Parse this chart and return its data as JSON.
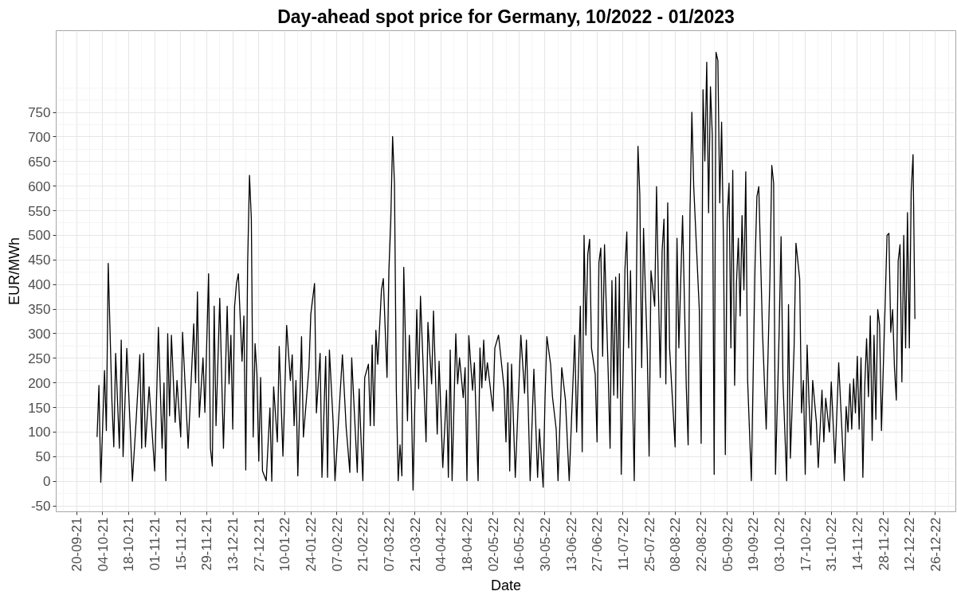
{
  "chart_data": {
    "type": "line",
    "title": "Day-ahead spot price for Germany, 10/2022 - 01/2023",
    "xlabel": "Date",
    "ylabel": "EUR/MWh",
    "x": [
      "2021-10-01",
      "2021-10-02",
      "2021-10-03",
      "2021-10-05",
      "2021-10-06",
      "2021-10-07",
      "2021-10-09",
      "2021-10-10",
      "2021-10-11",
      "2021-10-13",
      "2021-10-14",
      "2021-10-15",
      "2021-10-17",
      "2021-10-19",
      "2021-10-20",
      "2021-10-22",
      "2021-10-24",
      "2021-10-25",
      "2021-10-26",
      "2021-10-27",
      "2021-10-29",
      "2021-11-01",
      "2021-11-03",
      "2021-11-05",
      "2021-11-06",
      "2021-11-07",
      "2021-11-08",
      "2021-11-09",
      "2021-11-10",
      "2021-11-12",
      "2021-11-13",
      "2021-11-15",
      "2021-11-16",
      "2021-11-19",
      "2021-11-22",
      "2021-11-23",
      "2021-11-24",
      "2021-11-25",
      "2021-11-27",
      "2021-11-28",
      "2021-11-30",
      "2021-12-01",
      "2021-12-02",
      "2021-12-03",
      "2021-12-04",
      "2021-12-06",
      "2021-12-08",
      "2021-12-10",
      "2021-12-11",
      "2021-12-12",
      "2021-12-13",
      "2021-12-14",
      "2021-12-15",
      "2021-12-16",
      "2021-12-18",
      "2021-12-19",
      "2021-12-20",
      "2021-12-21",
      "2021-12-22",
      "2021-12-23",
      "2021-12-24",
      "2021-12-25",
      "2021-12-26",
      "2021-12-27",
      "2021-12-28",
      "2021-12-29",
      "2021-12-31",
      "2022-01-02",
      "2022-01-03",
      "2022-01-04",
      "2022-01-06",
      "2022-01-07",
      "2022-01-09",
      "2022-01-11",
      "2022-01-13",
      "2022-01-14",
      "2022-01-15",
      "2022-01-16",
      "2022-01-17",
      "2022-01-19",
      "2022-01-20",
      "2022-01-23",
      "2022-01-24",
      "2022-01-26",
      "2022-01-27",
      "2022-01-29",
      "2022-01-30",
      "2022-02-01",
      "2022-02-02",
      "2022-02-03",
      "2022-02-05",
      "2022-02-06",
      "2022-02-10",
      "2022-02-12",
      "2022-02-14",
      "2022-02-15",
      "2022-02-18",
      "2022-02-19",
      "2022-02-20",
      "2022-02-21",
      "2022-02-22",
      "2022-02-24",
      "2022-02-25",
      "2022-02-26",
      "2022-02-27",
      "2022-02-28",
      "2022-03-01",
      "2022-03-03",
      "2022-03-04",
      "2022-03-06",
      "2022-03-07",
      "2022-03-08",
      "2022-03-09",
      "2022-03-10",
      "2022-03-11",
      "2022-03-12",
      "2022-03-13",
      "2022-03-14",
      "2022-03-15",
      "2022-03-16",
      "2022-03-17",
      "2022-03-18",
      "2022-03-19",
      "2022-03-20",
      "2022-03-22",
      "2022-03-23",
      "2022-03-24",
      "2022-03-26",
      "2022-03-27",
      "2022-03-28",
      "2022-03-30",
      "2022-03-31",
      "2022-04-02",
      "2022-04-03",
      "2022-04-05",
      "2022-04-07",
      "2022-04-08",
      "2022-04-09",
      "2022-04-10",
      "2022-04-12",
      "2022-04-13",
      "2022-04-14",
      "2022-04-16",
      "2022-04-17",
      "2022-04-18",
      "2022-04-19",
      "2022-04-21",
      "2022-04-22",
      "2022-04-24",
      "2022-04-25",
      "2022-04-26",
      "2022-04-27",
      "2022-04-28",
      "2022-04-29",
      "2022-05-02",
      "2022-05-03",
      "2022-05-05",
      "2022-05-08",
      "2022-05-09",
      "2022-05-10",
      "2022-05-11",
      "2022-05-12",
      "2022-05-14",
      "2022-05-17",
      "2022-05-19",
      "2022-05-20",
      "2022-05-22",
      "2022-05-24",
      "2022-05-26",
      "2022-05-27",
      "2022-05-29",
      "2022-05-30",
      "2022-05-31",
      "2022-06-02",
      "2022-06-03",
      "2022-06-05",
      "2022-06-06",
      "2022-06-08",
      "2022-06-10",
      "2022-06-12",
      "2022-06-15",
      "2022-06-16",
      "2022-06-18",
      "2022-06-19",
      "2022-06-20",
      "2022-06-21",
      "2022-06-22",
      "2022-06-23",
      "2022-06-24",
      "2022-06-26",
      "2022-06-27",
      "2022-06-28",
      "2022-06-29",
      "2022-06-30",
      "2022-07-01",
      "2022-07-03",
      "2022-07-04",
      "2022-07-05",
      "2022-07-06",
      "2022-07-07",
      "2022-07-08",
      "2022-07-09",
      "2022-07-10",
      "2022-07-12",
      "2022-07-13",
      "2022-07-14",
      "2022-07-15",
      "2022-07-16",
      "2022-07-17",
      "2022-07-19",
      "2022-07-20",
      "2022-07-21",
      "2022-07-22",
      "2022-07-24",
      "2022-07-25",
      "2022-07-26",
      "2022-07-28",
      "2022-07-29",
      "2022-07-30",
      "2022-07-31",
      "2022-08-01",
      "2022-08-02",
      "2022-08-03",
      "2022-08-04",
      "2022-08-05",
      "2022-08-08",
      "2022-08-09",
      "2022-08-10",
      "2022-08-12",
      "2022-08-14",
      "2022-08-15",
      "2022-08-16",
      "2022-08-17",
      "2022-08-18",
      "2022-08-21",
      "2022-08-22",
      "2022-08-23",
      "2022-08-24",
      "2022-08-25",
      "2022-08-26",
      "2022-08-27",
      "2022-08-28",
      "2022-08-29",
      "2022-08-30",
      "2022-08-31",
      "2022-09-01",
      "2022-09-02",
      "2022-09-03",
      "2022-09-04",
      "2022-09-05",
      "2022-09-06",
      "2022-09-07",
      "2022-09-08",
      "2022-09-09",
      "2022-09-10",
      "2022-09-11",
      "2022-09-12",
      "2022-09-13",
      "2022-09-14",
      "2022-09-15",
      "2022-09-16",
      "2022-09-18",
      "2022-09-20",
      "2022-09-21",
      "2022-09-22",
      "2022-09-24",
      "2022-09-26",
      "2022-09-28",
      "2022-09-29",
      "2022-09-30",
      "2022-10-01",
      "2022-10-03",
      "2022-10-04",
      "2022-10-05",
      "2022-10-07",
      "2022-10-08",
      "2022-10-09",
      "2022-10-11",
      "2022-10-12",
      "2022-10-14",
      "2022-10-15",
      "2022-10-16",
      "2022-10-17",
      "2022-10-18",
      "2022-10-19",
      "2022-10-20",
      "2022-10-21",
      "2022-10-23",
      "2022-10-24",
      "2022-10-26",
      "2022-10-27",
      "2022-10-28",
      "2022-10-30",
      "2022-10-31",
      "2022-11-02",
      "2022-11-04",
      "2022-11-07",
      "2022-11-08",
      "2022-11-09",
      "2022-11-10",
      "2022-11-11",
      "2022-11-12",
      "2022-11-13",
      "2022-11-14",
      "2022-11-15",
      "2022-11-16",
      "2022-11-17",
      "2022-11-18",
      "2022-11-19",
      "2022-11-20",
      "2022-11-21",
      "2022-11-22",
      "2022-11-23",
      "2022-11-24",
      "2022-11-25",
      "2022-11-26",
      "2022-11-27",
      "2022-11-29",
      "2022-11-30",
      "2022-12-01",
      "2022-12-02",
      "2022-12-03",
      "2022-12-04",
      "2022-12-05",
      "2022-12-06",
      "2022-12-07",
      "2022-12-08",
      "2022-12-09",
      "2022-12-10",
      "2022-12-11",
      "2022-12-12",
      "2022-12-13",
      "2022-12-14",
      "2022-12-15"
    ],
    "series": [
      {
        "color": "#000000",
        "values": [
          90,
          195,
          -2,
          225,
          103,
          443,
          162,
          70,
          260,
          67,
          287,
          50,
          270,
          93,
          0,
          123,
          257,
          67,
          260,
          70,
          192,
          21,
          313,
          67,
          200,
          1,
          300,
          133,
          297,
          120,
          205,
          90,
          303,
          67,
          320,
          200,
          385,
          130,
          251,
          140,
          422,
          67,
          31,
          356,
          113,
          372,
          67,
          356,
          198,
          297,
          106,
          356,
          402,
          422,
          244,
          336,
          23,
          441,
          622,
          533,
          90,
          280,
          218,
          41,
          211,
          21,
          1,
          149,
          0,
          192,
          80,
          274,
          51,
          317,
          205,
          257,
          113,
          205,
          11,
          294,
          90,
          231,
          340,
          402,
          139,
          260,
          8,
          254,
          8,
          267,
          120,
          1,
          257,
          110,
          18,
          251,
          18,
          188,
          87,
          1,
          211,
          238,
          113,
          277,
          113,
          307,
          238,
          389,
          412,
          211,
          428,
          527,
          701,
          606,
          185,
          1,
          74,
          11,
          435,
          271,
          123,
          297,
          185,
          -18,
          349,
          188,
          376,
          179,
          80,
          323,
          198,
          346,
          96,
          244,
          28,
          185,
          8,
          267,
          1,
          300,
          198,
          251,
          170,
          231,
          1,
          296,
          185,
          241,
          1,
          271,
          190,
          287,
          205,
          241,
          143,
          271,
          297,
          188,
          80,
          241,
          21,
          238,
          8,
          297,
          179,
          287,
          1,
          228,
          8,
          106,
          -12,
          169,
          294,
          238,
          172,
          106,
          1,
          231,
          165,
          1,
          297,
          100,
          356,
          60,
          500,
          297,
          461,
          492,
          271,
          218,
          80,
          445,
          474,
          254,
          481,
          218,
          67,
          408,
          175,
          415,
          169,
          422,
          14,
          431,
          507,
          271,
          428,
          192,
          1,
          681,
          582,
          231,
          514,
          264,
          51,
          428,
          356,
          599,
          389,
          211,
          468,
          533,
          198,
          566,
          271,
          70,
          494,
          271,
          540,
          192,
          74,
          546,
          750,
          599,
          349,
          77,
          796,
          651,
          852,
          546,
          802,
          704,
          14,
          872,
          855,
          566,
          730,
          487,
          54,
          533,
          606,
          271,
          632,
          195,
          402,
          494,
          336,
          540,
          389,
          629,
          205,
          1,
          441,
          579,
          599,
          303,
          106,
          415,
          642,
          606,
          14,
          310,
          497,
          205,
          1,
          359,
          47,
          271,
          484,
          412,
          139,
          205,
          14,
          277,
          165,
          74,
          205,
          120,
          28,
          185,
          80,
          169,
          100,
          202,
          37,
          241,
          1,
          152,
          100,
          198,
          106,
          208,
          139,
          254,
          106,
          251,
          8,
          192,
          290,
          172,
          336,
          83,
          297,
          126,
          349,
          317,
          103,
          362,
          500,
          504,
          303,
          349,
          231,
          165,
          448,
          481,
          202,
          500,
          271,
          546,
          271,
          589,
          664,
          330
        ]
      }
    ],
    "xlim": [
      "2021-09-09",
      "2023-01-06"
    ],
    "ylim": [
      -62,
      916
    ],
    "xticks": [
      {
        "value": "2021-09-20",
        "label": "20-09-21"
      },
      {
        "value": "2021-10-04",
        "label": "04-10-21"
      },
      {
        "value": "2021-10-18",
        "label": "18-10-21"
      },
      {
        "value": "2021-11-01",
        "label": "01-11-21"
      },
      {
        "value": "2021-11-15",
        "label": "15-11-21"
      },
      {
        "value": "2021-11-29",
        "label": "29-11-21"
      },
      {
        "value": "2021-12-13",
        "label": "13-12-21"
      },
      {
        "value": "2021-12-27",
        "label": "27-12-21"
      },
      {
        "value": "2022-01-10",
        "label": "10-01-22"
      },
      {
        "value": "2022-01-24",
        "label": "24-01-22"
      },
      {
        "value": "2022-02-07",
        "label": "07-02-22"
      },
      {
        "value": "2022-02-21",
        "label": "21-02-22"
      },
      {
        "value": "2022-03-07",
        "label": "07-03-22"
      },
      {
        "value": "2022-03-21",
        "label": "21-03-22"
      },
      {
        "value": "2022-04-04",
        "label": "04-04-22"
      },
      {
        "value": "2022-04-18",
        "label": "18-04-22"
      },
      {
        "value": "2022-05-02",
        "label": "02-05-22"
      },
      {
        "value": "2022-05-16",
        "label": "16-05-22"
      },
      {
        "value": "2022-05-30",
        "label": "30-05-22"
      },
      {
        "value": "2022-06-13",
        "label": "13-06-22"
      },
      {
        "value": "2022-06-27",
        "label": "27-06-22"
      },
      {
        "value": "2022-07-11",
        "label": "11-07-22"
      },
      {
        "value": "2022-07-25",
        "label": "25-07-22"
      },
      {
        "value": "2022-08-08",
        "label": "08-08-22"
      },
      {
        "value": "2022-08-22",
        "label": "22-08-22"
      },
      {
        "value": "2022-09-05",
        "label": "05-09-22"
      },
      {
        "value": "2022-09-19",
        "label": "19-09-22"
      },
      {
        "value": "2022-10-03",
        "label": "03-10-22"
      },
      {
        "value": "2022-10-17",
        "label": "17-10-22"
      },
      {
        "value": "2022-10-31",
        "label": "31-10-22"
      },
      {
        "value": "2022-11-14",
        "label": "14-11-22"
      },
      {
        "value": "2022-11-28",
        "label": "28-11-22"
      },
      {
        "value": "2022-12-12",
        "label": "12-12-22"
      },
      {
        "value": "2022-12-26",
        "label": "26-12-22"
      }
    ],
    "yticks": [
      -50,
      0,
      50,
      100,
      150,
      200,
      250,
      300,
      350,
      400,
      450,
      500,
      550,
      600,
      650,
      700,
      750
    ],
    "grid": true,
    "line_style": "solid"
  }
}
